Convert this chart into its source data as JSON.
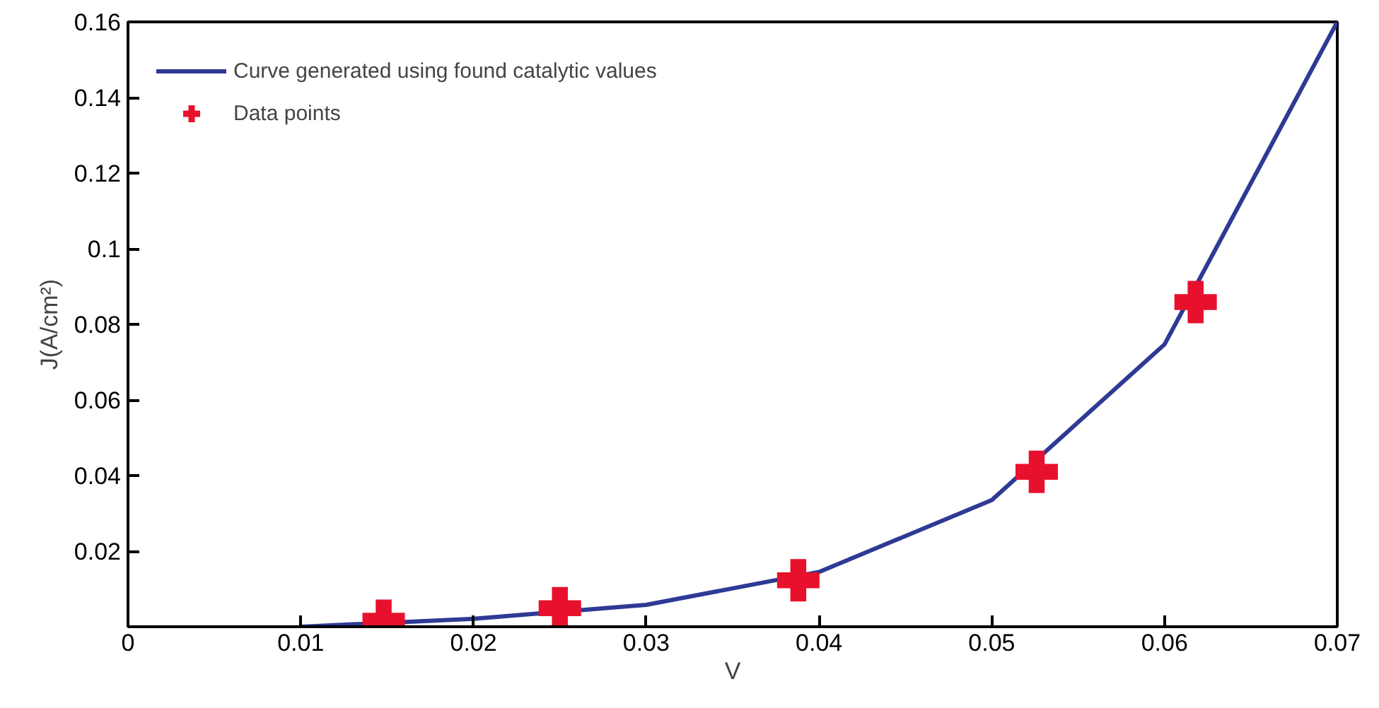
{
  "chart_data": {
    "type": "line",
    "xlabel": "V",
    "ylabel": "J(A/cm²)",
    "xlim": [
      0,
      0.07
    ],
    "ylim": [
      0,
      0.16
    ],
    "xticks": [
      0,
      0.01,
      0.02,
      0.03,
      0.04,
      0.05,
      0.06,
      0.07
    ],
    "yticks": [
      0.02,
      0.04,
      0.06,
      0.08,
      0.1,
      0.12,
      0.14,
      0.16
    ],
    "grid": false,
    "legend": "top left",
    "series": [
      {
        "name": "Curve generated using found catalytic values",
        "color": "#2e3a94",
        "line_style": "solid",
        "marker": "none",
        "x": [
          0.01,
          0.02,
          0.03,
          0.04,
          0.05,
          0.06,
          0.07
        ],
        "values": [
          0,
          0.0021,
          0.0058,
          0.0145,
          0.0335,
          0.0747,
          0.16
        ]
      },
      {
        "name": "Data points",
        "type": "scatter",
        "color": "#e8112d",
        "marker": "cross",
        "x": [
          0.0148,
          0.025,
          0.0388,
          0.0526,
          0.0618
        ],
        "values": [
          0.0016,
          0.0049,
          0.0123,
          0.041,
          0.0859
        ]
      }
    ]
  }
}
